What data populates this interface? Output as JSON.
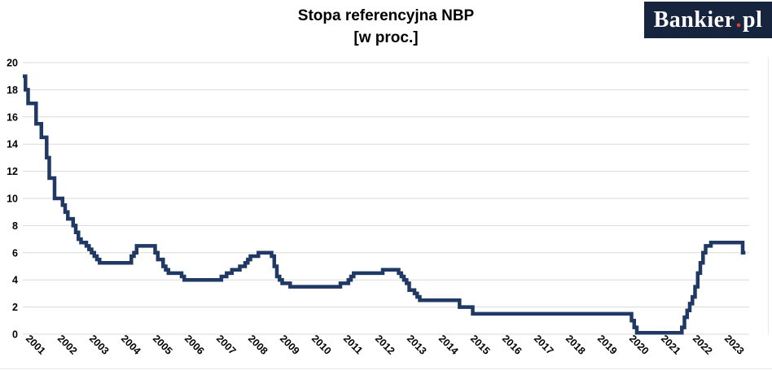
{
  "title": {
    "line1": "Stopa referencyjna NBP",
    "line2": "[w proc.]"
  },
  "logo": {
    "text_main": "Bankier",
    "dot": ".",
    "text_suffix": "pl",
    "bg_color": "#16243E",
    "dot_color": "#E0402E",
    "text_color": "#FFFFFF"
  },
  "chart_data": {
    "type": "line",
    "step": true,
    "title": "Stopa referencyjna NBP [w proc.]",
    "series_name": "Stopa referencyjna NBP",
    "unit": "proc.",
    "line_color": "#1F3864",
    "grid_color": "#D9D9D9",
    "frame_color": "#E9E9E9",
    "tick_label_color": "#000000",
    "ylim": [
      0,
      20
    ],
    "yticks": [
      0,
      2,
      4,
      6,
      8,
      10,
      12,
      14,
      16,
      18,
      20
    ],
    "x_labels": [
      "2001",
      "2002",
      "2003",
      "2004",
      "2005",
      "2006",
      "2007",
      "2008",
      "2009",
      "2010",
      "2011",
      "2012",
      "2013",
      "2014",
      "2015",
      "2016",
      "2017",
      "2018",
      "2019",
      "2020",
      "2021",
      "2022",
      "2023"
    ],
    "x_label_rotation_deg": 45,
    "grid": "horizontal-only",
    "legend": "none",
    "monthly_values_by_year": {
      "2001": [
        19,
        18,
        17,
        17,
        17,
        15.5,
        15.5,
        14.5,
        14.5,
        13,
        11.5,
        11.5
      ],
      "2002": [
        10,
        10,
        10,
        9.5,
        9,
        8.5,
        8.5,
        8,
        7.5,
        7,
        6.75,
        6.75
      ],
      "2003": [
        6.5,
        6.25,
        6,
        5.75,
        5.5,
        5.25,
        5.25,
        5.25,
        5.25,
        5.25,
        5.25,
        5.25
      ],
      "2004": [
        5.25,
        5.25,
        5.25,
        5.25,
        5.25,
        5.75,
        6,
        6.5,
        6.5,
        6.5,
        6.5,
        6.5
      ],
      "2005": [
        6.5,
        6.5,
        6,
        5.5,
        5.5,
        5,
        4.75,
        4.5,
        4.5,
        4.5,
        4.5,
        4.5
      ],
      "2006": [
        4.25,
        4,
        4,
        4,
        4,
        4,
        4,
        4,
        4,
        4,
        4,
        4
      ],
      "2007": [
        4,
        4,
        4,
        4.25,
        4.25,
        4.5,
        4.5,
        4.75,
        4.75,
        4.75,
        5,
        5
      ],
      "2008": [
        5.25,
        5.5,
        5.75,
        5.75,
        5.75,
        6,
        6,
        6,
        6,
        6,
        5.75,
        5
      ],
      "2009": [
        4.25,
        4,
        3.75,
        3.75,
        3.75,
        3.5,
        3.5,
        3.5,
        3.5,
        3.5,
        3.5,
        3.5
      ],
      "2010": [
        3.5,
        3.5,
        3.5,
        3.5,
        3.5,
        3.5,
        3.5,
        3.5,
        3.5,
        3.5,
        3.5,
        3.5
      ],
      "2011": [
        3.75,
        3.75,
        3.75,
        4,
        4.25,
        4.5,
        4.5,
        4.5,
        4.5,
        4.5,
        4.5,
        4.5
      ],
      "2012": [
        4.5,
        4.5,
        4.5,
        4.5,
        4.75,
        4.75,
        4.75,
        4.75,
        4.75,
        4.75,
        4.5,
        4.25
      ],
      "2013": [
        4,
        3.75,
        3.25,
        3.25,
        3,
        2.75,
        2.5,
        2.5,
        2.5,
        2.5,
        2.5,
        2.5
      ],
      "2014": [
        2.5,
        2.5,
        2.5,
        2.5,
        2.5,
        2.5,
        2.5,
        2.5,
        2.5,
        2,
        2,
        2
      ],
      "2015": [
        2,
        2,
        1.5,
        1.5,
        1.5,
        1.5,
        1.5,
        1.5,
        1.5,
        1.5,
        1.5,
        1.5
      ],
      "2016": [
        1.5,
        1.5,
        1.5,
        1.5,
        1.5,
        1.5,
        1.5,
        1.5,
        1.5,
        1.5,
        1.5,
        1.5
      ],
      "2017": [
        1.5,
        1.5,
        1.5,
        1.5,
        1.5,
        1.5,
        1.5,
        1.5,
        1.5,
        1.5,
        1.5,
        1.5
      ],
      "2018": [
        1.5,
        1.5,
        1.5,
        1.5,
        1.5,
        1.5,
        1.5,
        1.5,
        1.5,
        1.5,
        1.5,
        1.5
      ],
      "2019": [
        1.5,
        1.5,
        1.5,
        1.5,
        1.5,
        1.5,
        1.5,
        1.5,
        1.5,
        1.5,
        1.5,
        1.5
      ],
      "2020": [
        1.5,
        1.5,
        1,
        0.5,
        0.1,
        0.1,
        0.1,
        0.1,
        0.1,
        0.1,
        0.1,
        0.1
      ],
      "2021": [
        0.1,
        0.1,
        0.1,
        0.1,
        0.1,
        0.1,
        0.1,
        0.1,
        0.1,
        0.5,
        1.25,
        1.75
      ],
      "2022": [
        2.25,
        2.75,
        3.5,
        4.5,
        5.25,
        6,
        6.5,
        6.5,
        6.75,
        6.75,
        6.75,
        6.75
      ],
      "2023": [
        6.75,
        6.75,
        6.75,
        6.75,
        6.75,
        6.75,
        6.75,
        6.75,
        6
      ]
    }
  }
}
